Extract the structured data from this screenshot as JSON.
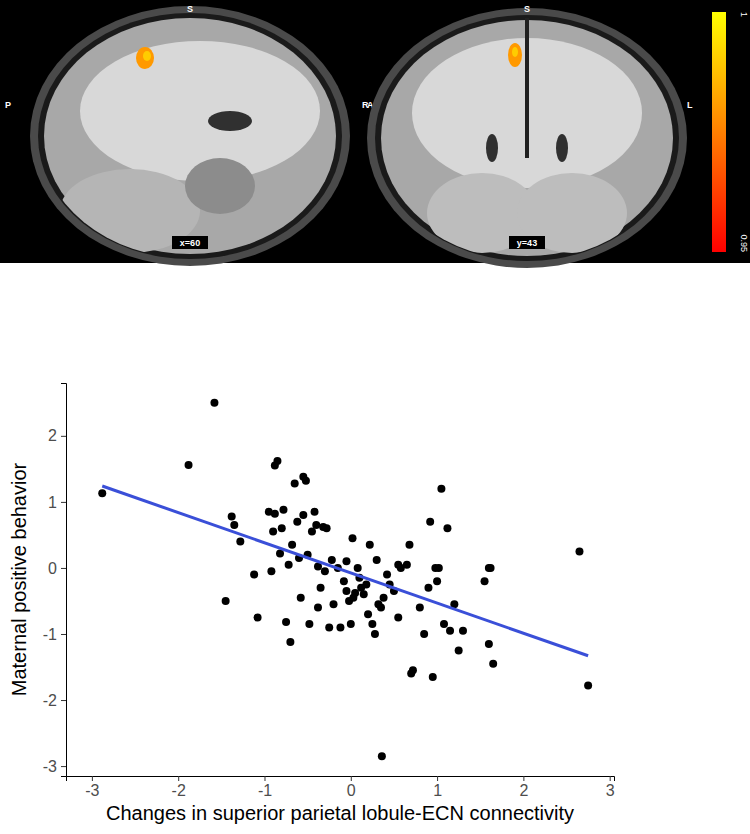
{
  "chart_data": [
    {
      "type": "brain_map",
      "panels": [
        {
          "slice_label": "x=60",
          "top": "S",
          "left": "P",
          "right": "A"
        },
        {
          "slice_label": "y=43",
          "top": "S",
          "left": "R",
          "right": "L"
        }
      ],
      "color_range": [
        0.95,
        1
      ],
      "color_ticks": [
        0.95,
        1
      ],
      "colorscale": [
        "#ff0000",
        "#ffff00"
      ]
    },
    {
      "type": "scatter",
      "x_label": "Changes in superior parietal lobule-ECN connectivity",
      "y_label": "Maternal positive behavior",
      "xlim": [
        -3.3,
        3.05
      ],
      "ylim": [
        -3.15,
        2.8
      ],
      "xticks": [
        -3,
        -2,
        -1,
        0,
        1,
        2,
        3
      ],
      "yticks": [
        -3,
        -2,
        -1,
        0,
        1,
        2
      ],
      "grid": false,
      "series": [
        {
          "type": "scatter",
          "color": "#000000",
          "marker": "circle",
          "x": [
            -2.88,
            -1.88,
            -1.58,
            -1.45,
            -1.38,
            -1.35,
            -1.28,
            -1.12,
            -1.08,
            -0.92,
            -0.9,
            -0.88,
            -0.88,
            -0.85,
            -0.82,
            -0.8,
            -0.78,
            -0.75,
            -0.72,
            -0.7,
            -0.68,
            -0.65,
            -0.62,
            -0.6,
            -0.58,
            -0.55,
            -0.55,
            -0.52,
            -0.5,
            -0.48,
            -0.45,
            -0.42,
            -0.4,
            -0.38,
            -0.38,
            -0.35,
            -0.32,
            -0.3,
            -0.28,
            -0.25,
            -0.22,
            -0.2,
            -0.15,
            -0.12,
            -0.08,
            -0.05,
            -0.02,
            0.0,
            0.02,
            0.03,
            0.05,
            0.08,
            0.1,
            0.12,
            0.15,
            0.18,
            0.2,
            0.22,
            0.25,
            0.28,
            0.3,
            0.32,
            0.35,
            0.36,
            0.38,
            0.42,
            0.45,
            0.5,
            0.55,
            0.58,
            0.65,
            0.68,
            0.7,
            0.72,
            0.8,
            0.85,
            0.9,
            0.92,
            0.95,
            0.98,
            1.0,
            1.02,
            1.05,
            1.08,
            1.12,
            1.15,
            1.2,
            1.25,
            1.3,
            1.55,
            1.6,
            1.62,
            1.65,
            2.65,
            2.75,
            1.6,
            0.55,
            -0.05,
            -0.95
          ],
          "values": [
            1.13,
            1.56,
            2.5,
            -0.5,
            0.78,
            0.65,
            0.4,
            -0.1,
            -0.75,
            -0.05,
            0.55,
            0.82,
            1.55,
            1.62,
            0.22,
            0.6,
            0.88,
            -0.82,
            0.05,
            -1.12,
            0.35,
            1.28,
            0.7,
            0.15,
            -0.45,
            0.8,
            1.38,
            1.32,
            0.2,
            -0.85,
            0.55,
            0.85,
            0.65,
            0.02,
            -0.6,
            -0.3,
            0.62,
            -0.05,
            0.6,
            -0.9,
            0.12,
            -0.55,
            0.0,
            -0.9,
            -0.2,
            0.1,
            -0.5,
            -0.85,
            0.45,
            -0.45,
            -0.38,
            0.0,
            -0.15,
            -0.3,
            -0.4,
            -0.25,
            -0.7,
            0.35,
            -0.85,
            -1.0,
            0.12,
            -0.55,
            -0.6,
            -2.85,
            -0.45,
            -0.1,
            -0.25,
            -0.35,
            -0.75,
            0.0,
            0.05,
            0.35,
            -1.6,
            -1.55,
            -0.6,
            -1.0,
            -0.3,
            0.7,
            -1.65,
            0.0,
            -0.2,
            0.0,
            1.2,
            -0.85,
            0.6,
            -0.95,
            -0.55,
            -1.25,
            -0.95,
            -0.2,
            -1.15,
            0.0,
            -1.45,
            0.25,
            -1.78,
            0.0,
            0.05,
            -0.35,
            0.85
          ]
        },
        {
          "type": "line",
          "color": "#3a4fd8",
          "line_style": "solid",
          "x": [
            -2.88,
            2.75
          ],
          "values": [
            1.24,
            -1.33
          ]
        }
      ]
    }
  ]
}
